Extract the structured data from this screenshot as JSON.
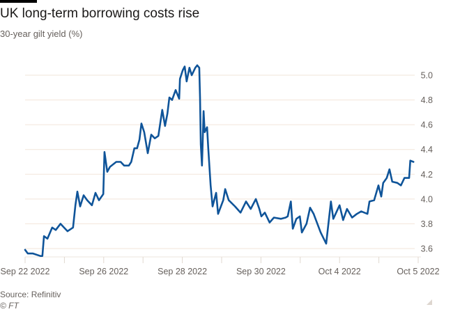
{
  "header": {
    "title": "UK long-term borrowing costs rise",
    "subtitle": "30-year gilt yield (%)"
  },
  "footer": {
    "source": "Source: Refinitiv",
    "copyright": "© FT"
  },
  "colors": {
    "line": "#0f5499",
    "grid": "#f2e5da",
    "text": "#66605c"
  },
  "chart_data": {
    "type": "line",
    "title": "UK long-term borrowing costs rise",
    "subtitle": "30-year gilt yield (%)",
    "xlabel": "",
    "ylabel": "30-year gilt yield (%)",
    "x_unit": "trading-day index from Sep 22 2022",
    "xlim": [
      0,
      10
    ],
    "ylim": [
      3.53,
      5.12
    ],
    "grid": true,
    "y_axis_side": "right",
    "x_ticks": [
      0,
      1,
      2,
      3,
      4,
      5,
      6,
      7,
      8,
      9,
      10
    ],
    "x_tick_labels": [
      {
        "x": 0,
        "label": "Sep 22 2022"
      },
      {
        "x": 2,
        "label": "Sep 26 2022"
      },
      {
        "x": 4,
        "label": "Sep 28 2022"
      },
      {
        "x": 6,
        "label": "Sep 30 2022"
      },
      {
        "x": 8,
        "label": "Oct 4 2022"
      },
      {
        "x": 10,
        "label": "Oct 5 2022"
      }
    ],
    "y_ticks": [
      {
        "y": 3.6,
        "label": "3.6"
      },
      {
        "y": 3.8,
        "label": "3.8"
      },
      {
        "y": 4.0,
        "label": "4.0"
      },
      {
        "y": 4.2,
        "label": "4.2"
      },
      {
        "y": 4.4,
        "label": "4.4"
      },
      {
        "y": 4.6,
        "label": "4.6"
      },
      {
        "y": 4.8,
        "label": "4.8"
      },
      {
        "y": 5.0,
        "label": "5.0"
      }
    ],
    "series": [
      {
        "name": "30-year gilt yield",
        "x": [
          0.0,
          0.07,
          0.2,
          0.39,
          0.44,
          0.48,
          0.57,
          0.69,
          0.78,
          0.9,
          0.99,
          1.08,
          1.22,
          1.28,
          1.33,
          1.4,
          1.49,
          1.58,
          1.7,
          1.79,
          1.88,
          1.99,
          2.02,
          2.09,
          2.16,
          2.32,
          2.43,
          2.52,
          2.64,
          2.7,
          2.78,
          2.85,
          2.91,
          2.96,
          3.03,
          3.12,
          3.21,
          3.3,
          3.39,
          3.49,
          3.56,
          3.62,
          3.67,
          3.74,
          3.83,
          3.92,
          3.94,
          4.01,
          4.06,
          4.11,
          4.18,
          4.24,
          4.33,
          4.38,
          4.43,
          4.45,
          4.47,
          4.5,
          4.54,
          4.57,
          4.63,
          4.66,
          4.72,
          4.77,
          4.86,
          4.91,
          5.04,
          5.09,
          5.18,
          5.34,
          5.48,
          5.62,
          5.74,
          5.87,
          5.96,
          6.01,
          6.1,
          6.22,
          6.33,
          6.51,
          6.63,
          6.68,
          6.76,
          6.81,
          6.9,
          6.99,
          7.04,
          7.16,
          7.25,
          7.34,
          7.52,
          7.66,
          7.73,
          7.78,
          7.84,
          8.0,
          8.09,
          8.19,
          8.32,
          8.44,
          8.55,
          8.71,
          8.76,
          8.88,
          8.99,
          9.06,
          9.11,
          9.2,
          9.27,
          9.34,
          9.47,
          9.56,
          9.65,
          9.77,
          9.8,
          9.88
        ],
        "y": [
          3.59,
          3.56,
          3.56,
          3.54,
          3.54,
          3.7,
          3.68,
          3.77,
          3.75,
          3.8,
          3.77,
          3.74,
          3.77,
          3.95,
          4.06,
          3.94,
          4.03,
          3.99,
          3.95,
          4.05,
          3.99,
          4.04,
          4.38,
          4.22,
          4.26,
          4.3,
          4.3,
          4.27,
          4.27,
          4.3,
          4.41,
          4.41,
          4.48,
          4.61,
          4.54,
          4.37,
          4.52,
          4.49,
          4.51,
          4.72,
          4.59,
          4.69,
          4.82,
          4.8,
          4.88,
          4.81,
          4.97,
          5.04,
          5.07,
          4.95,
          5.06,
          5.0,
          5.06,
          5.08,
          5.06,
          4.82,
          4.44,
          4.27,
          4.71,
          4.54,
          4.58,
          4.41,
          4.11,
          3.94,
          4.05,
          3.88,
          3.99,
          4.08,
          3.99,
          3.94,
          3.89,
          3.98,
          3.92,
          4.0,
          3.92,
          3.86,
          3.89,
          3.81,
          3.85,
          3.84,
          3.85,
          3.86,
          3.98,
          3.76,
          3.84,
          3.86,
          3.73,
          3.8,
          3.93,
          3.88,
          3.73,
          3.64,
          3.84,
          3.98,
          3.84,
          3.95,
          3.83,
          3.92,
          3.85,
          3.88,
          3.9,
          3.88,
          3.98,
          3.99,
          4.11,
          4.02,
          4.13,
          4.17,
          4.24,
          4.14,
          4.13,
          4.11,
          4.17,
          4.17,
          4.31,
          4.3
        ]
      }
    ]
  }
}
